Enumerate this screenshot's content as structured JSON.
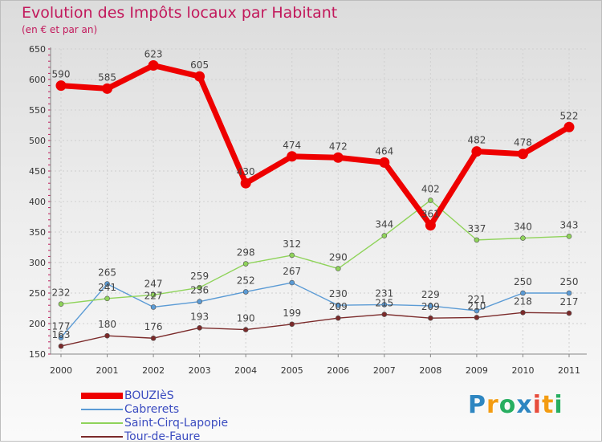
{
  "title": "Evolution des Impôts locaux par Habitant",
  "subtitle": "(en € et par an)",
  "logo": {
    "letters": [
      {
        "ch": "P",
        "color": "#2e86c1"
      },
      {
        "ch": "r",
        "color": "#f39c12"
      },
      {
        "ch": "o",
        "color": "#27ae60"
      },
      {
        "ch": "x",
        "color": "#2e86c1"
      },
      {
        "ch": "i",
        "color": "#e74c3c"
      },
      {
        "ch": "t",
        "color": "#f39c12"
      },
      {
        "ch": "i",
        "color": "#27ae60"
      }
    ]
  },
  "chart_data": {
    "type": "line",
    "x": [
      "2000",
      "2001",
      "2002",
      "2003",
      "2004",
      "2005",
      "2006",
      "2007",
      "2008",
      "2009",
      "2010",
      "2011"
    ],
    "ylim": [
      150,
      650
    ],
    "yticks": [
      "150",
      "200",
      "250",
      "300",
      "350",
      "400",
      "450",
      "500",
      "550",
      "600",
      "650"
    ],
    "grid": true,
    "legend_position": "bottom-left",
    "series": [
      {
        "name": "BOUZIèS",
        "color": "#ee0000",
        "values": [
          590,
          585,
          623,
          605,
          430,
          474,
          472,
          464,
          361,
          482,
          478,
          522
        ]
      },
      {
        "name": "Cabrerets",
        "color": "#5b9bd5",
        "values": [
          177,
          265,
          227,
          236,
          252,
          267,
          230,
          231,
          229,
          221,
          250,
          250
        ]
      },
      {
        "name": "Saint-Cirq-Lapopie",
        "color": "#8fd35a",
        "values": [
          232,
          241,
          247,
          259,
          298,
          312,
          290,
          344,
          402,
          337,
          340,
          343
        ]
      },
      {
        "name": "Tour-de-Faure",
        "color": "#7b2a2a",
        "values": [
          163,
          180,
          176,
          193,
          190,
          199,
          209,
          215,
          209,
          210,
          218,
          217
        ]
      }
    ]
  }
}
